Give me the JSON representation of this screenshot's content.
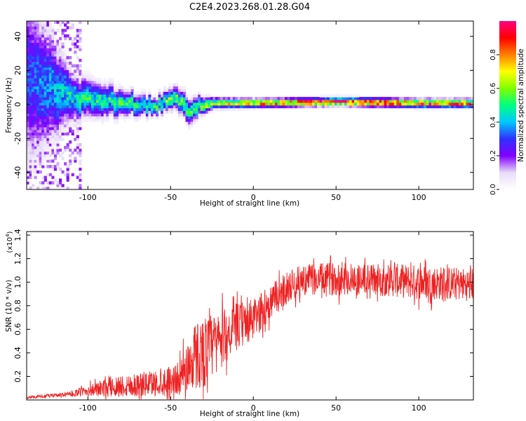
{
  "figure": {
    "title": "C2E4.2023.268.01.28.G04"
  },
  "chart_data": [
    {
      "type": "heatmap",
      "xlabel": "Height of straight line (km)",
      "ylabel": "Frequency (Hz)",
      "xlim": [
        -137,
        133
      ],
      "ylim": [
        -50,
        49
      ],
      "xticks": [
        -100,
        -50,
        0,
        50,
        100
      ],
      "yticks": [
        40,
        20,
        0,
        -20,
        -40
      ],
      "colorbar": {
        "label": "Normalized spectral amplitude",
        "range": [
          0.0,
          1.0
        ],
        "ticks": [
          0.0,
          0.2,
          0.4,
          0.6,
          0.8
        ],
        "colormap": [
          "#ffffff",
          "#e8dcf8",
          "#8000ff",
          "#3030ff",
          "#00c8ff",
          "#00ff80",
          "#80ff00",
          "#ffff00",
          "#ff8000",
          "#ff0000",
          "#ff0080"
        ]
      },
      "ridge": {
        "description_points": [
          {
            "x": -137,
            "center": 15,
            "spread": 40,
            "amp": 0.3
          },
          {
            "x": -110,
            "center": 3,
            "spread": 10,
            "amp": 0.45
          },
          {
            "x": -80,
            "center": 1,
            "spread": 6,
            "amp": 0.5
          },
          {
            "x": -60,
            "center": -2,
            "spread": 4,
            "amp": 0.5
          },
          {
            "x": -50,
            "center": 4,
            "spread": 5,
            "amp": 0.55
          },
          {
            "x": -40,
            "center": -4,
            "spread": 6,
            "amp": 0.5
          },
          {
            "x": -25,
            "center": 0,
            "spread": 2.5,
            "amp": 0.65
          },
          {
            "x": 0,
            "center": 0,
            "spread": 2,
            "amp": 0.75
          },
          {
            "x": 50,
            "center": 1,
            "spread": 2,
            "amp": 0.9
          },
          {
            "x": 100,
            "center": 0,
            "spread": 2,
            "amp": 0.85
          },
          {
            "x": 133,
            "center": 0,
            "spread": 2,
            "amp": 0.8
          }
        ]
      }
    },
    {
      "type": "line",
      "xlabel": "Height of straight line (km)",
      "ylabel": "SNR (10 * v/v)",
      "yscale_label": "(x10",
      "yscale_exp": "4",
      "yscale_close": ")",
      "xlim": [
        -137,
        133
      ],
      "ylim": [
        0,
        1.43
      ],
      "xticks": [
        -100,
        -50,
        0,
        50,
        100
      ],
      "yticks": [
        0.2,
        0.4,
        0.6,
        0.8,
        1.0,
        1.2,
        1.4
      ],
      "line_color": "#ee2222",
      "series": [
        {
          "envelope": [
            {
              "x": -137,
              "mean": 0.02,
              "noise": 0.01
            },
            {
              "x": -110,
              "mean": 0.05,
              "noise": 0.02
            },
            {
              "x": -100,
              "mean": 0.08,
              "noise": 0.05
            },
            {
              "x": -80,
              "mean": 0.12,
              "noise": 0.1
            },
            {
              "x": -60,
              "mean": 0.14,
              "noise": 0.11
            },
            {
              "x": -45,
              "mean": 0.18,
              "noise": 0.14
            },
            {
              "x": -35,
              "mean": 0.38,
              "noise": 0.3
            },
            {
              "x": -28,
              "mean": 0.42,
              "noise": 0.3
            },
            {
              "x": -20,
              "mean": 0.52,
              "noise": 0.25
            },
            {
              "x": -10,
              "mean": 0.62,
              "noise": 0.2
            },
            {
              "x": 0,
              "mean": 0.68,
              "noise": 0.18
            },
            {
              "x": 10,
              "mean": 0.82,
              "noise": 0.15
            },
            {
              "x": 20,
              "mean": 0.95,
              "noise": 0.14
            },
            {
              "x": 30,
              "mean": 1.02,
              "noise": 0.13
            },
            {
              "x": 50,
              "mean": 1.03,
              "noise": 0.14
            },
            {
              "x": 80,
              "mean": 1.02,
              "noise": 0.14
            },
            {
              "x": 100,
              "mean": 1.0,
              "noise": 0.15
            },
            {
              "x": 133,
              "mean": 0.98,
              "noise": 0.14
            }
          ]
        }
      ]
    }
  ]
}
